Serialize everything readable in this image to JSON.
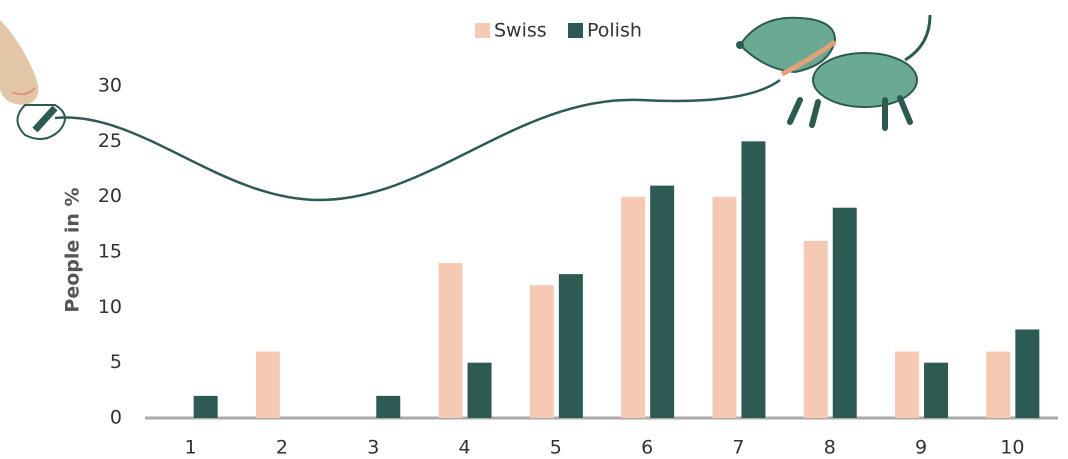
{
  "chart_data": {
    "type": "bar",
    "y_label": "People in %",
    "categories": [
      "1",
      "2",
      "3",
      "4",
      "5",
      "6",
      "7",
      "8",
      "9",
      "10"
    ],
    "series": [
      {
        "name": "Swiss",
        "color": "#f6c9b5",
        "values": [
          0,
          6,
          0,
          14,
          12,
          20,
          20,
          16,
          6,
          6
        ]
      },
      {
        "name": "Polish",
        "color": "#2d5b53",
        "values": [
          2,
          0,
          2,
          5,
          13,
          21,
          25,
          19,
          5,
          8
        ]
      }
    ],
    "ylim": [
      0,
      30
    ],
    "yticks": [
      0,
      5,
      10,
      15,
      20,
      25,
      30
    ],
    "grid": false
  }
}
